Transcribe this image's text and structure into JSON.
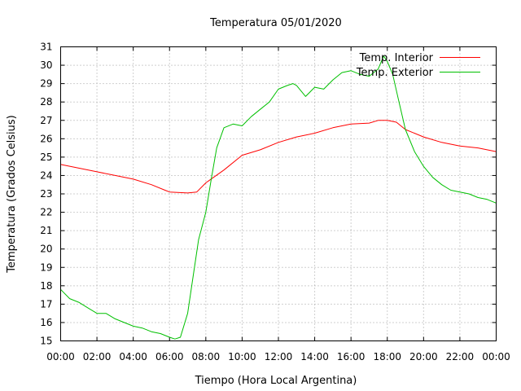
{
  "chart_data": {
    "type": "line",
    "title": "Temperatura 05/01/2020",
    "xlabel": "Tiempo (Hora Local Argentina)",
    "ylabel": "Temperatura (Grados Celsius)",
    "xlim": [
      0,
      24
    ],
    "ylim": [
      15,
      31
    ],
    "x_tick_labels": [
      "00:00",
      "02:00",
      "04:00",
      "06:00",
      "08:00",
      "10:00",
      "12:00",
      "14:00",
      "16:00",
      "18:00",
      "20:00",
      "22:00",
      "00:00"
    ],
    "y_ticks": [
      15,
      16,
      17,
      18,
      19,
      20,
      21,
      22,
      23,
      24,
      25,
      26,
      27,
      28,
      29,
      30,
      31
    ],
    "grid": true,
    "legend_position": "top-right",
    "series": [
      {
        "name": "Temp. Interior",
        "color": "#ff0000",
        "x": [
          0,
          1,
          2,
          3,
          4,
          5,
          5.75,
          6,
          7,
          7.5,
          8,
          9,
          10,
          11,
          12,
          13,
          14,
          15,
          16,
          17,
          17.5,
          18,
          18.5,
          19,
          20,
          21,
          22,
          23,
          24
        ],
        "y": [
          24.6,
          24.4,
          24.2,
          24.0,
          23.8,
          23.5,
          23.2,
          23.1,
          23.05,
          23.1,
          23.6,
          24.3,
          25.1,
          25.4,
          25.8,
          26.1,
          26.3,
          26.6,
          26.8,
          26.85,
          27.0,
          27.0,
          26.9,
          26.5,
          26.1,
          25.8,
          25.6,
          25.5,
          25.3
        ]
      },
      {
        "name": "Temp. Exterior",
        "color": "#00c000",
        "x": [
          0,
          0.5,
          1,
          1.5,
          2,
          2.5,
          3,
          3.5,
          4,
          4.5,
          5,
          5.5,
          6,
          6.3,
          6.6,
          7,
          7.3,
          7.6,
          8,
          8.3,
          8.6,
          9,
          9.5,
          10,
          10.5,
          11,
          11.5,
          12,
          12.5,
          12.8,
          13,
          13.5,
          14,
          14.5,
          15,
          15.5,
          16,
          16.5,
          17,
          17.5,
          17.8,
          18,
          18.3,
          18.6,
          19,
          19.5,
          20,
          20.5,
          21,
          21.5,
          22,
          22.5,
          23,
          23.5,
          24
        ],
        "y": [
          17.8,
          17.3,
          17.1,
          16.8,
          16.5,
          16.5,
          16.2,
          16.0,
          15.8,
          15.7,
          15.5,
          15.4,
          15.2,
          15.1,
          15.2,
          16.5,
          18.5,
          20.5,
          22.0,
          23.8,
          25.5,
          26.6,
          26.8,
          26.7,
          27.2,
          27.6,
          28.0,
          28.7,
          28.9,
          29.0,
          28.9,
          28.3,
          28.8,
          28.7,
          29.2,
          29.6,
          29.7,
          29.5,
          29.4,
          29.8,
          30.5,
          30.2,
          29.5,
          28.2,
          26.5,
          25.3,
          24.5,
          23.9,
          23.5,
          23.2,
          23.1,
          23.0,
          22.8,
          22.7,
          22.5
        ]
      }
    ]
  }
}
